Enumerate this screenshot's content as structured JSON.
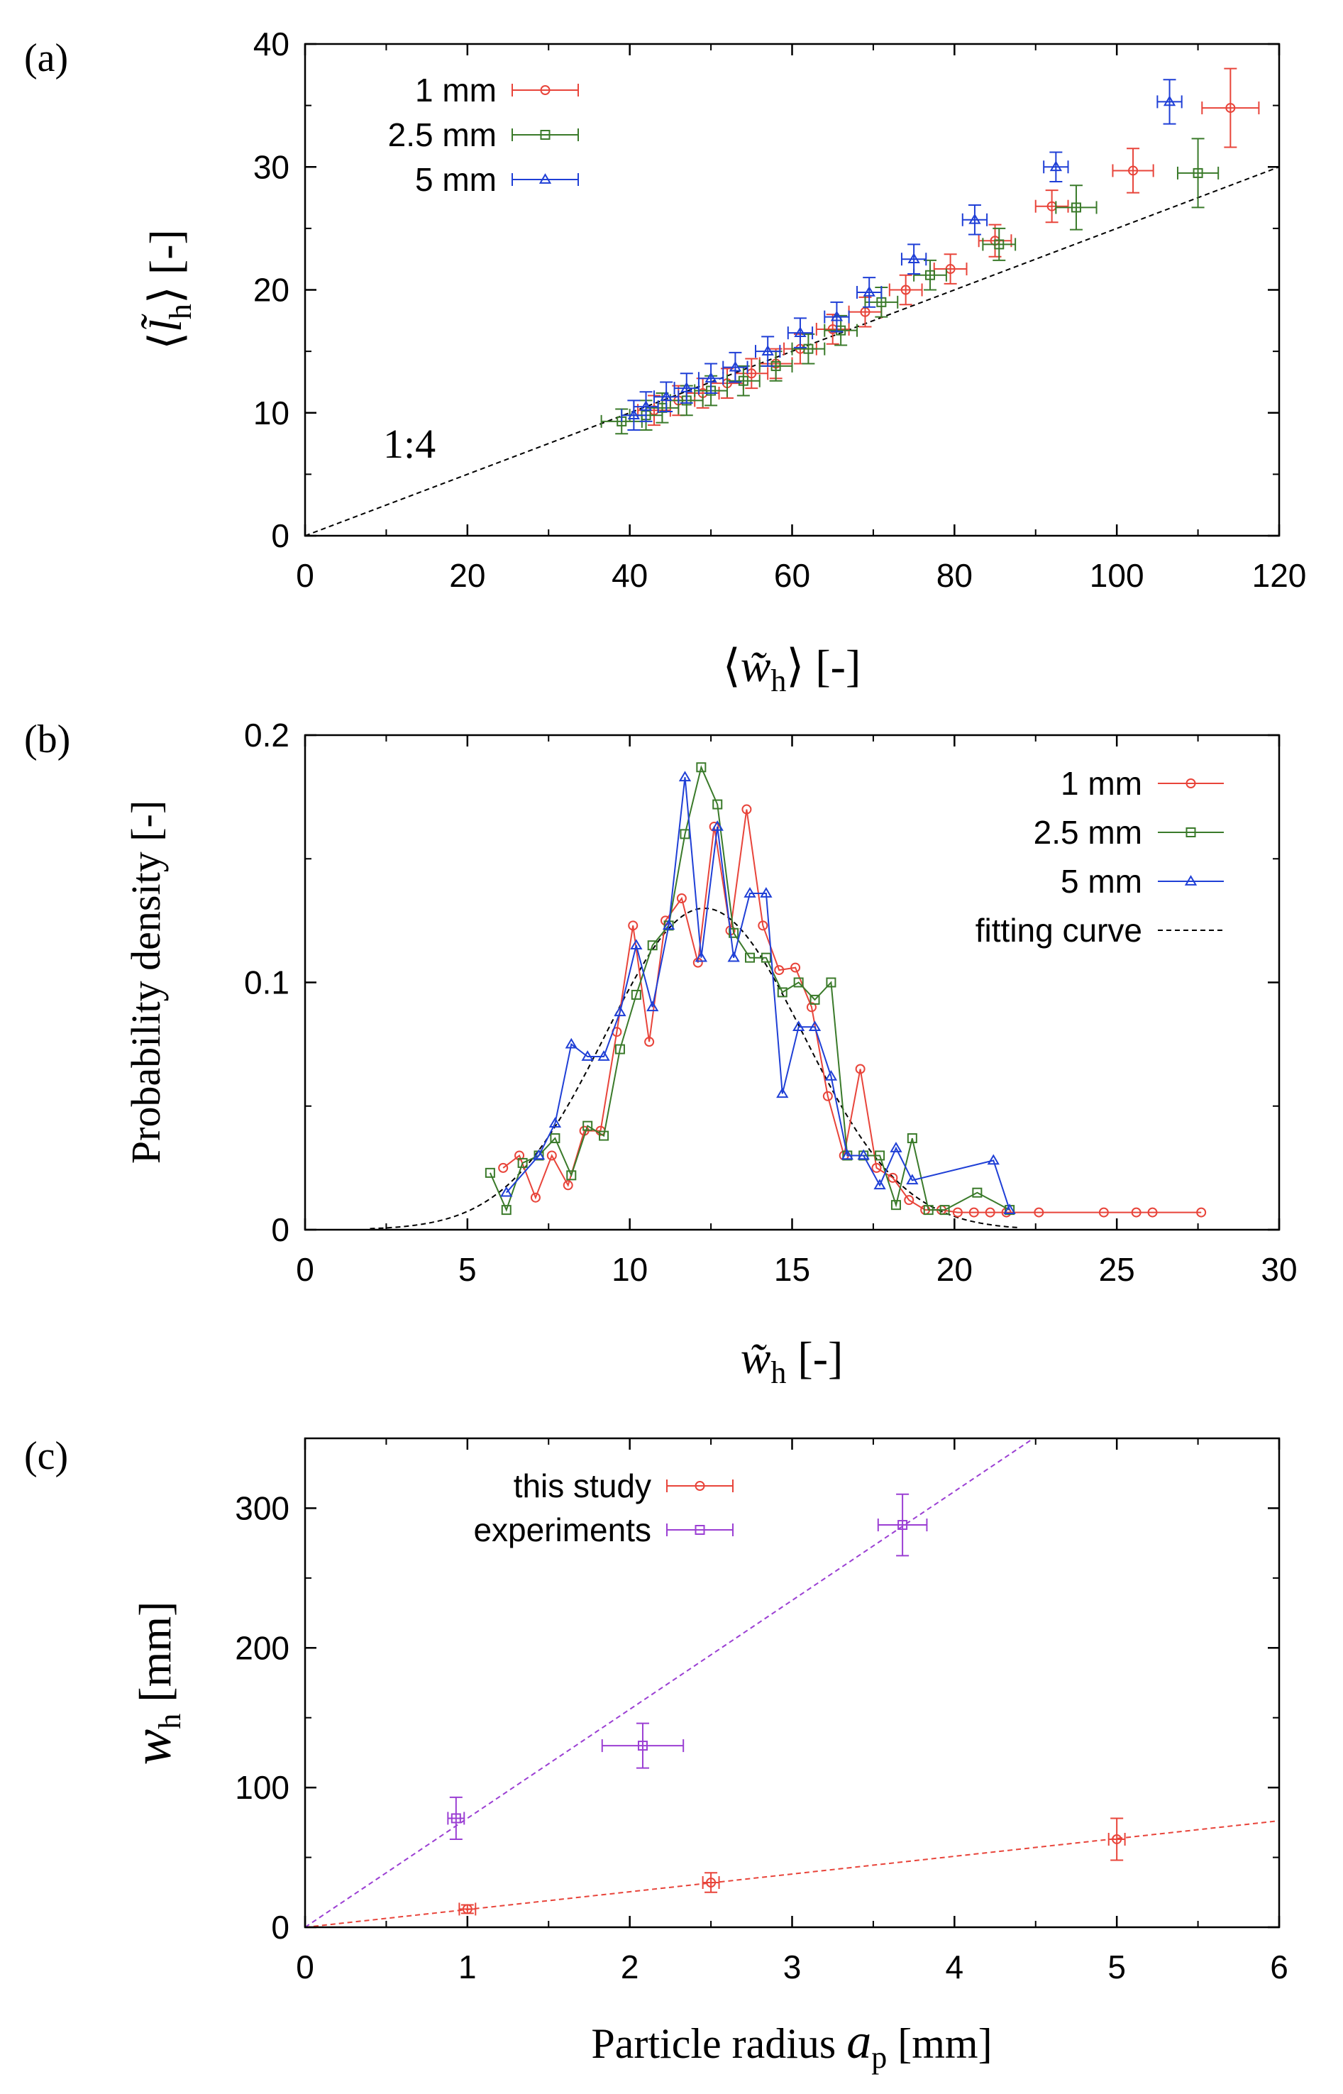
{
  "chart_data": [
    {
      "panel_label": "(a)",
      "type": "scatter",
      "xlabel_prefix": "⟨",
      "xlabel_var": "w̃",
      "xlabel_sub": "h",
      "xlabel_suffix": "⟩ [-]",
      "ylabel_prefix": "⟨",
      "ylabel_var": "l̃",
      "ylabel_sub": "h",
      "ylabel_suffix": "⟩ [-]",
      "xlim": [
        0,
        120
      ],
      "ylim": [
        0,
        40
      ],
      "xticks": [
        0,
        20,
        40,
        60,
        80,
        100,
        120
      ],
      "yticks": [
        0,
        10,
        20,
        30,
        40
      ],
      "annotation": "1:4",
      "reference_line": {
        "slope": 0.25,
        "x": [
          0,
          120
        ]
      },
      "series": [
        {
          "name": "1 mm",
          "color": "#e8443a",
          "marker": "circle",
          "points": [
            {
              "x": 114,
              "y": 34.8,
              "xerr": 3.5,
              "yerr": 3.2
            },
            {
              "x": 102,
              "y": 29.7,
              "xerr": 2.5,
              "yerr": 1.8
            },
            {
              "x": 92,
              "y": 26.8,
              "xerr": 2.0,
              "yerr": 1.3
            },
            {
              "x": 85,
              "y": 24.0,
              "xerr": 2.0,
              "yerr": 1.3
            },
            {
              "x": 79.5,
              "y": 21.7,
              "xerr": 2.0,
              "yerr": 1.2
            },
            {
              "x": 74,
              "y": 20.0,
              "xerr": 2.0,
              "yerr": 1.2
            },
            {
              "x": 69,
              "y": 18.2,
              "xerr": 2.0,
              "yerr": 1.2
            },
            {
              "x": 65,
              "y": 16.8,
              "xerr": 2.0,
              "yerr": 1.2
            },
            {
              "x": 61,
              "y": 15.2,
              "xerr": 2.0,
              "yerr": 1.2
            },
            {
              "x": 58,
              "y": 14.0,
              "xerr": 2.0,
              "yerr": 1.2
            },
            {
              "x": 55,
              "y": 13.2,
              "xerr": 2.0,
              "yerr": 1.2
            },
            {
              "x": 52,
              "y": 12.4,
              "xerr": 2.0,
              "yerr": 1.2
            },
            {
              "x": 49,
              "y": 11.6,
              "xerr": 2.0,
              "yerr": 1.2
            },
            {
              "x": 46,
              "y": 11.0,
              "xerr": 2.0,
              "yerr": 1.2
            },
            {
              "x": 43,
              "y": 10.2,
              "xerr": 2.0,
              "yerr": 1.2
            }
          ]
        },
        {
          "name": "2.5 mm",
          "color": "#3a7a2a",
          "marker": "square",
          "points": [
            {
              "x": 110,
              "y": 29.5,
              "xerr": 2.5,
              "yerr": 2.8
            },
            {
              "x": 95,
              "y": 26.7,
              "xerr": 2.5,
              "yerr": 1.8
            },
            {
              "x": 85.5,
              "y": 23.7,
              "xerr": 2.0,
              "yerr": 1.3
            },
            {
              "x": 77,
              "y": 21.2,
              "xerr": 2.0,
              "yerr": 1.2
            },
            {
              "x": 71,
              "y": 19.0,
              "xerr": 2.0,
              "yerr": 1.2
            },
            {
              "x": 66,
              "y": 16.7,
              "xerr": 2.0,
              "yerr": 1.2
            },
            {
              "x": 62,
              "y": 15.2,
              "xerr": 2.0,
              "yerr": 1.2
            },
            {
              "x": 58,
              "y": 13.8,
              "xerr": 2.0,
              "yerr": 1.2
            },
            {
              "x": 54,
              "y": 12.6,
              "xerr": 2.0,
              "yerr": 1.2
            },
            {
              "x": 50,
              "y": 11.8,
              "xerr": 2.0,
              "yerr": 1.2
            },
            {
              "x": 47,
              "y": 11.0,
              "xerr": 2.0,
              "yerr": 1.2
            },
            {
              "x": 44,
              "y": 10.4,
              "xerr": 2.0,
              "yerr": 1.2
            },
            {
              "x": 42,
              "y": 9.8,
              "xerr": 2.0,
              "yerr": 1.2
            },
            {
              "x": 39,
              "y": 9.3,
              "xerr": 2.5,
              "yerr": 1.0
            }
          ]
        },
        {
          "name": "5 mm",
          "color": "#1f3fd6",
          "marker": "triangle",
          "points": [
            {
              "x": 106.5,
              "y": 35.3,
              "xerr": 1.5,
              "yerr": 1.8
            },
            {
              "x": 92.5,
              "y": 30.0,
              "xerr": 1.5,
              "yerr": 1.2
            },
            {
              "x": 82.5,
              "y": 25.7,
              "xerr": 1.5,
              "yerr": 1.2
            },
            {
              "x": 75,
              "y": 22.5,
              "xerr": 1.5,
              "yerr": 1.2
            },
            {
              "x": 69.5,
              "y": 19.8,
              "xerr": 1.5,
              "yerr": 1.2
            },
            {
              "x": 65.5,
              "y": 17.8,
              "xerr": 1.5,
              "yerr": 1.2
            },
            {
              "x": 61,
              "y": 16.5,
              "xerr": 1.5,
              "yerr": 1.2
            },
            {
              "x": 57,
              "y": 15.0,
              "xerr": 1.5,
              "yerr": 1.2
            },
            {
              "x": 53,
              "y": 13.7,
              "xerr": 1.5,
              "yerr": 1.2
            },
            {
              "x": 50,
              "y": 12.8,
              "xerr": 1.5,
              "yerr": 1.2
            },
            {
              "x": 47,
              "y": 12.0,
              "xerr": 1.5,
              "yerr": 1.2
            },
            {
              "x": 44.5,
              "y": 11.3,
              "xerr": 1.5,
              "yerr": 1.2
            },
            {
              "x": 42,
              "y": 10.5,
              "xerr": 1.5,
              "yerr": 1.2
            },
            {
              "x": 40.5,
              "y": 9.8,
              "xerr": 1.5,
              "yerr": 1.2
            }
          ]
        }
      ]
    },
    {
      "panel_label": "(b)",
      "type": "line",
      "xlabel_var": "w̃",
      "xlabel_sub": "h",
      "xlabel_suffix": " [-]",
      "ylabel": "Probability density [-]",
      "xlim": [
        0,
        30
      ],
      "ylim": [
        0,
        0.2
      ],
      "xticks": [
        0,
        5,
        10,
        15,
        20,
        25,
        30
      ],
      "yticks": [
        0,
        0.1,
        0.2
      ],
      "series": [
        {
          "name": "1 mm",
          "color": "#e8443a",
          "marker": "circle",
          "x": [
            6.1,
            6.6,
            7.1,
            7.6,
            8.1,
            8.6,
            9.1,
            9.6,
            10.1,
            10.6,
            11.1,
            11.6,
            12.1,
            12.6,
            13.1,
            13.6,
            14.1,
            14.6,
            15.1,
            15.6,
            16.1,
            16.6,
            17.1,
            17.6,
            18.1,
            18.6,
            19.1,
            19.6,
            20.1,
            20.6,
            21.1,
            21.6,
            22.6,
            24.6,
            25.6,
            26.1,
            27.6
          ],
          "y": [
            0.025,
            0.03,
            0.013,
            0.03,
            0.018,
            0.04,
            0.04,
            0.08,
            0.123,
            0.076,
            0.125,
            0.134,
            0.108,
            0.163,
            0.121,
            0.17,
            0.123,
            0.105,
            0.106,
            0.09,
            0.054,
            0.03,
            0.065,
            0.025,
            0.021,
            0.012,
            0.008,
            0.008,
            0.007,
            0.007,
            0.007,
            0.007,
            0.007,
            0.007,
            0.007,
            0.007,
            0.007
          ]
        },
        {
          "name": "2.5 mm",
          "color": "#3a7a2a",
          "marker": "square",
          "x": [
            5.7,
            6.2,
            6.7,
            7.2,
            7.7,
            8.2,
            8.7,
            9.2,
            9.7,
            10.2,
            10.7,
            11.2,
            11.7,
            12.2,
            12.7,
            13.2,
            13.7,
            14.2,
            14.7,
            15.2,
            15.7,
            16.2,
            16.7,
            17.2,
            17.7,
            18.2,
            18.7,
            19.2,
            19.7,
            20.7,
            21.7
          ],
          "y": [
            0.023,
            0.008,
            0.027,
            0.03,
            0.037,
            0.022,
            0.042,
            0.038,
            0.073,
            0.095,
            0.115,
            0.123,
            0.16,
            0.187,
            0.172,
            0.12,
            0.11,
            0.11,
            0.096,
            0.1,
            0.093,
            0.1,
            0.03,
            0.03,
            0.03,
            0.01,
            0.037,
            0.008,
            0.008,
            0.015,
            0.008
          ]
        },
        {
          "name": "5 mm",
          "color": "#1f3fd6",
          "marker": "triangle",
          "x": [
            6.2,
            7.2,
            7.7,
            8.2,
            8.7,
            9.2,
            9.7,
            10.2,
            10.7,
            11.2,
            11.7,
            12.2,
            12.7,
            13.2,
            13.7,
            14.2,
            14.7,
            15.2,
            15.7,
            16.2,
            16.7,
            17.2,
            17.7,
            18.2,
            18.7,
            21.2,
            21.7
          ],
          "y": [
            0.015,
            0.03,
            0.043,
            0.075,
            0.07,
            0.07,
            0.088,
            0.115,
            0.09,
            0.123,
            0.183,
            0.11,
            0.163,
            0.11,
            0.136,
            0.136,
            0.055,
            0.082,
            0.082,
            0.062,
            0.03,
            0.03,
            0.018,
            0.033,
            0.02,
            0.028,
            0.008
          ]
        }
      ],
      "fit": {
        "name": "fitting curve",
        "type": "gaussian",
        "mean": 12.3,
        "sd": 3.05,
        "peak": 0.13,
        "x_range": [
          2,
          22
        ]
      }
    },
    {
      "panel_label": "(c)",
      "type": "scatter",
      "xlabel": "Particle radius ",
      "xlabel_var": "a",
      "xlabel_sub": "p",
      "xlabel_suffix": " [mm]",
      "ylabel_var": "w",
      "ylabel_sub": "h",
      "ylabel_suffix": " [mm]",
      "xlim": [
        0,
        6
      ],
      "ylim": [
        0,
        350
      ],
      "xticks": [
        0,
        1,
        2,
        3,
        4,
        5,
        6
      ],
      "yticks": [
        0,
        100,
        200,
        300
      ],
      "series": [
        {
          "name": "this study",
          "color": "#e8443a",
          "marker": "circle",
          "points": [
            {
              "x": 1.0,
              "y": 13,
              "xerr": 0.05,
              "yerr": 3
            },
            {
              "x": 2.5,
              "y": 32,
              "xerr": 0.05,
              "yerr": 7
            },
            {
              "x": 5.0,
              "y": 63,
              "xerr": 0.05,
              "yerr": 15
            }
          ],
          "fit_line": {
            "slope": 12.7,
            "x": [
              0,
              6
            ]
          }
        },
        {
          "name": "experiments",
          "color": "#9b3fd3",
          "marker": "square",
          "points": [
            {
              "x": 0.93,
              "y": 78,
              "xerr": 0.05,
              "yerr": 15
            },
            {
              "x": 2.08,
              "y": 130,
              "xerr": 0.25,
              "yerr": 16
            },
            {
              "x": 3.68,
              "y": 288,
              "xerr": 0.15,
              "yerr": 22
            }
          ],
          "fit_line": {
            "slope": 78,
            "x": [
              0,
              4.5
            ]
          }
        }
      ]
    }
  ]
}
